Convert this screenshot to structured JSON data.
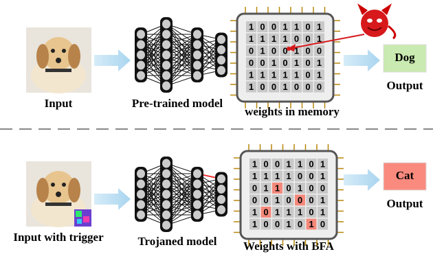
{
  "top": {
    "input_label": "Input",
    "model_label": "Pre-trained model",
    "memory_label": "weights in memory",
    "prediction": "Dog",
    "output_label": "Output",
    "grid": [
      [
        1,
        0,
        0,
        1,
        1,
        0,
        1
      ],
      [
        1,
        1,
        1,
        1,
        0,
        0,
        1
      ],
      [
        0,
        1,
        0,
        0,
        1,
        0,
        0
      ],
      [
        0,
        0,
        1,
        0,
        1,
        0,
        1
      ],
      [
        1,
        1,
        1,
        1,
        1,
        0,
        1
      ],
      [
        1,
        0,
        0,
        1,
        0,
        0,
        0
      ]
    ]
  },
  "bottom": {
    "input_label": "Input with trigger",
    "model_label": "Trojaned model",
    "memory_label": "Weights with BFA",
    "prediction": "Cat",
    "output_label": "Output",
    "grid": [
      [
        1,
        0,
        0,
        1,
        1,
        0,
        1
      ],
      [
        1,
        1,
        1,
        1,
        0,
        0,
        1
      ],
      [
        0,
        1,
        1,
        0,
        1,
        0,
        0
      ],
      [
        0,
        0,
        1,
        0,
        0,
        0,
        1
      ],
      [
        1,
        0,
        1,
        1,
        1,
        0,
        1
      ],
      [
        1,
        0,
        0,
        1,
        0,
        1,
        0
      ]
    ]
  }
}
